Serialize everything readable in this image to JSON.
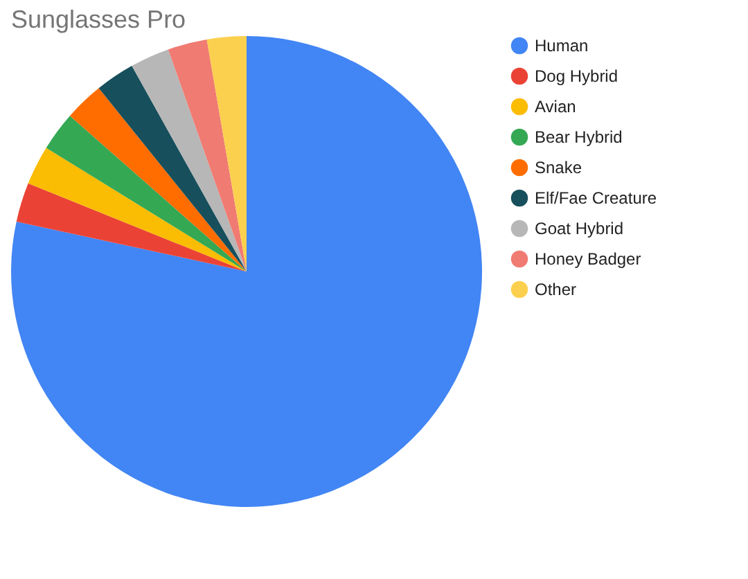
{
  "chart_data": {
    "type": "pie",
    "title": "Sunglasses Pro",
    "categories": [
      "Human",
      "Dog Hybrid",
      "Avian",
      "Bear Hybrid",
      "Snake",
      "Elf/Fae Creature",
      "Goat Hybrid",
      "Honey Badger",
      "Other"
    ],
    "values": [
      78.4,
      2.7,
      2.7,
      2.7,
      2.7,
      2.7,
      2.7,
      2.7,
      2.7
    ],
    "colors": [
      "#4285f4",
      "#ea4335",
      "#fbbc04",
      "#34a853",
      "#ff6d01",
      "#174f5c",
      "#b7b7b7",
      "#f07b72",
      "#fcd04f"
    ],
    "legend": "right"
  }
}
